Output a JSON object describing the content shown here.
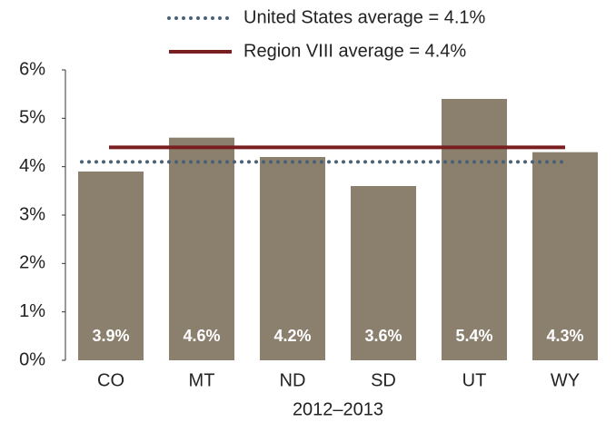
{
  "chart_data": {
    "type": "bar",
    "categories": [
      "CO",
      "MT",
      "ND",
      "SD",
      "UT",
      "WY"
    ],
    "values": [
      3.9,
      4.6,
      4.2,
      3.6,
      5.4,
      4.3
    ],
    "value_labels": [
      "3.9%",
      "4.6%",
      "4.2%",
      "3.6%",
      "5.4%",
      "4.3%"
    ],
    "color": "#8b7f6e",
    "x_label": "2012–2013",
    "ylim": [
      0,
      6
    ],
    "yticks": [
      {
        "value": 0,
        "label": "0%"
      },
      {
        "value": 1,
        "label": "1%"
      },
      {
        "value": 2,
        "label": "2%"
      },
      {
        "value": 3,
        "label": "3%"
      },
      {
        "value": 4,
        "label": "4%"
      },
      {
        "value": 5,
        "label": "5%"
      },
      {
        "value": 6,
        "label": "6%"
      }
    ],
    "reference_lines": [
      {
        "name": "United States average = 4.1%",
        "value": 4.1,
        "color": "#4a6076",
        "style": "dotted"
      },
      {
        "name": "Region VIII average = 4.4%",
        "value": 4.4,
        "color": "#7a1f1f",
        "style": "solid"
      }
    ],
    "grid": false
  }
}
